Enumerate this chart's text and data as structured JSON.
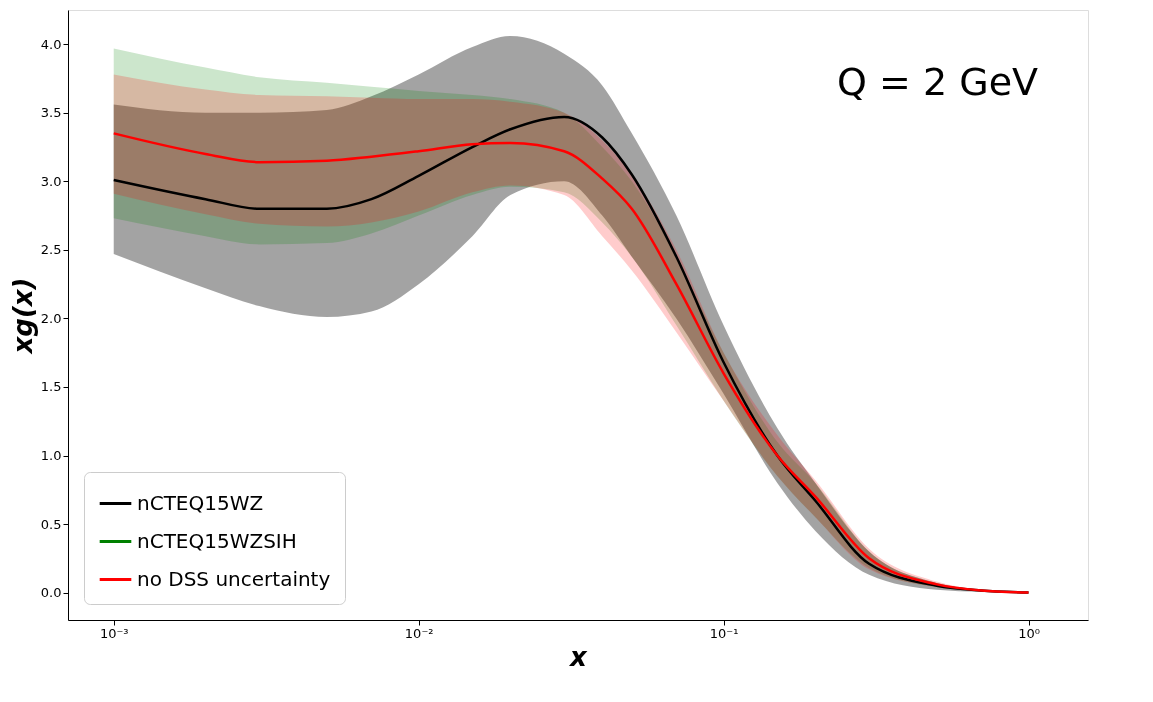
{
  "chart_data": {
    "type": "line",
    "xlabel": "x",
    "ylabel": "xg(x)",
    "annotations": [
      "Q = 2 GeV"
    ],
    "x": [
      0.001,
      0.002,
      0.003,
      0.005,
      0.007,
      0.01,
      0.015,
      0.02,
      0.03,
      0.04,
      0.05,
      0.07,
      0.1,
      0.15,
      0.2,
      0.3,
      0.5,
      0.7,
      1.0
    ],
    "series": [
      {
        "name": "nCTEQ15WZ",
        "color": "#000000",
        "values": [
          3.01,
          2.87,
          2.8,
          2.8,
          2.87,
          3.04,
          3.25,
          3.38,
          3.47,
          3.32,
          3.05,
          2.45,
          1.68,
          1.0,
          0.67,
          0.21,
          0.05,
          0.015,
          0.0
        ],
        "lower": [
          2.47,
          2.22,
          2.09,
          2.01,
          2.05,
          2.25,
          2.6,
          2.9,
          3.0,
          2.75,
          2.45,
          2.0,
          1.45,
          0.8,
          0.45,
          0.13,
          0.02,
          0.005,
          0.0
        ],
        "upper": [
          3.56,
          3.5,
          3.5,
          3.52,
          3.62,
          3.78,
          3.98,
          4.06,
          3.93,
          3.7,
          3.35,
          2.75,
          1.95,
          1.2,
          0.8,
          0.3,
          0.07,
          0.02,
          0.0
        ]
      },
      {
        "name": "nCTEQ15WZSIH",
        "color": "#008000",
        "values": [
          null,
          null,
          null,
          null,
          null,
          null,
          null,
          null,
          null,
          null,
          null,
          null,
          null,
          null,
          null,
          null,
          null,
          null,
          null
        ],
        "lower": [
          2.73,
          2.6,
          2.54,
          2.55,
          2.62,
          2.75,
          2.9,
          2.96,
          2.92,
          2.7,
          2.45,
          1.95,
          1.4,
          0.85,
          0.55,
          0.18,
          0.04,
          0.01,
          0.0
        ],
        "upper": [
          3.97,
          3.83,
          3.76,
          3.72,
          3.69,
          3.66,
          3.63,
          3.6,
          3.5,
          3.25,
          3.0,
          2.45,
          1.75,
          1.1,
          0.8,
          0.3,
          0.07,
          0.02,
          0.0
        ]
      },
      {
        "name": "no DSS uncertainty",
        "color": "#ff0000",
        "values": [
          3.35,
          3.2,
          3.14,
          3.15,
          3.18,
          3.22,
          3.27,
          3.28,
          3.22,
          3.02,
          2.8,
          2.25,
          1.6,
          1.0,
          0.7,
          0.25,
          0.06,
          0.015,
          0.0
        ],
        "lower": [
          2.91,
          2.76,
          2.69,
          2.67,
          2.7,
          2.78,
          2.92,
          2.97,
          2.9,
          2.6,
          2.35,
          1.9,
          1.4,
          0.85,
          0.55,
          0.17,
          0.04,
          0.01,
          0.0
        ],
        "upper": [
          3.78,
          3.67,
          3.63,
          3.62,
          3.61,
          3.6,
          3.6,
          3.58,
          3.5,
          3.3,
          3.05,
          2.5,
          1.75,
          1.15,
          0.82,
          0.32,
          0.08,
          0.02,
          0.0
        ]
      }
    ],
    "log": "x",
    "xlim": [
      0.000708,
      1.567
    ],
    "ylim": [
      -0.2,
      4.25
    ],
    "xticks": [
      {
        "value": 0.001,
        "label": "10⁻³"
      },
      {
        "value": 0.01,
        "label": "10⁻²"
      },
      {
        "value": 0.1,
        "label": "10⁻¹"
      },
      {
        "value": 1,
        "label": "10⁰"
      }
    ],
    "yticks": [
      {
        "value": 0,
        "label": "0.0"
      },
      0.5,
      {
        "value": 1,
        "label": "1.0"
      },
      1.5,
      {
        "value": 2,
        "label": "2.0"
      },
      2.5,
      {
        "value": 3,
        "label": "3.0"
      },
      3.5,
      {
        "value": 4,
        "label": "4.0"
      }
    ],
    "grid": false,
    "legend": "bottom left"
  }
}
